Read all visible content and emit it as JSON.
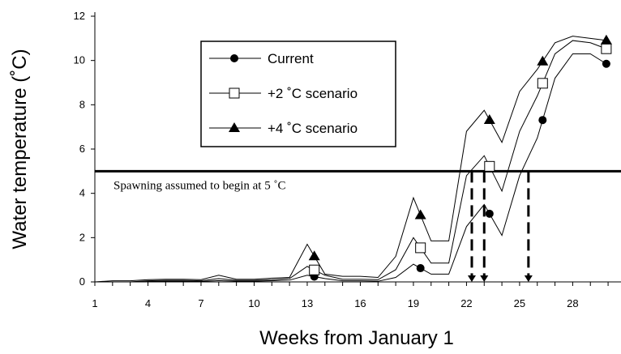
{
  "chart_data": {
    "type": "line",
    "xlabel": "Weeks from January 1",
    "ylabel": "Water temperature (˚C)",
    "xlim": [
      1,
      30
    ],
    "ylim": [
      0,
      12
    ],
    "xticks": [
      1,
      4,
      7,
      10,
      13,
      16,
      19,
      22,
      25,
      28
    ],
    "yticks": [
      0,
      2,
      4,
      6,
      8,
      10,
      12
    ],
    "grid": false,
    "legend": "top-left",
    "x": [
      1,
      2,
      3,
      4,
      5,
      6,
      7,
      8,
      9,
      10,
      11,
      12,
      13,
      14,
      15,
      16,
      17,
      18,
      19,
      20,
      21,
      22,
      23,
      24,
      25,
      26,
      27,
      28,
      29,
      30
    ],
    "series": [
      {
        "name": "Current",
        "marker": "filled-circle",
        "values": [
          0,
          0,
          0,
          0.02,
          0.03,
          0.03,
          0.02,
          0.06,
          0.03,
          0.03,
          0.05,
          0.08,
          0.3,
          0.15,
          0.05,
          0.05,
          0.03,
          0.2,
          0.8,
          0.35,
          0.35,
          2.5,
          3.5,
          2.1,
          4.8,
          6.5,
          9.2,
          10.3,
          10.3,
          9.8
        ],
        "marker_x": [
          13.4,
          19.4,
          23.3,
          26.3,
          29.9
        ]
      },
      {
        "name": "+2 ˚C scenario",
        "marker": "open-square",
        "values": [
          0,
          0,
          0,
          0.05,
          0.07,
          0.07,
          0.05,
          0.15,
          0.07,
          0.07,
          0.1,
          0.15,
          0.7,
          0.3,
          0.12,
          0.12,
          0.1,
          0.55,
          2.0,
          0.85,
          0.85,
          4.8,
          5.7,
          4.1,
          6.8,
          8.4,
          10.3,
          10.9,
          10.8,
          10.5
        ],
        "marker_x": [
          13.4,
          19.4,
          23.3,
          26.3,
          29.9
        ]
      },
      {
        "name": "+4 ˚C scenario",
        "marker": "filled-triangle",
        "values": [
          0,
          0.05,
          0.05,
          0.1,
          0.12,
          0.12,
          0.1,
          0.3,
          0.12,
          0.12,
          0.17,
          0.2,
          1.7,
          0.35,
          0.25,
          0.25,
          0.2,
          1.15,
          3.8,
          1.85,
          1.85,
          6.8,
          7.75,
          6.3,
          8.6,
          9.6,
          10.8,
          11.1,
          11.0,
          10.9
        ],
        "marker_x": [
          13.4,
          19.4,
          23.3,
          26.3,
          29.9
        ]
      }
    ],
    "threshold": {
      "y": 5,
      "label": "Spawning assumed to begin at 5 ˚C"
    },
    "spawning_weeks": [
      22.3,
      23.0,
      25.5
    ]
  }
}
